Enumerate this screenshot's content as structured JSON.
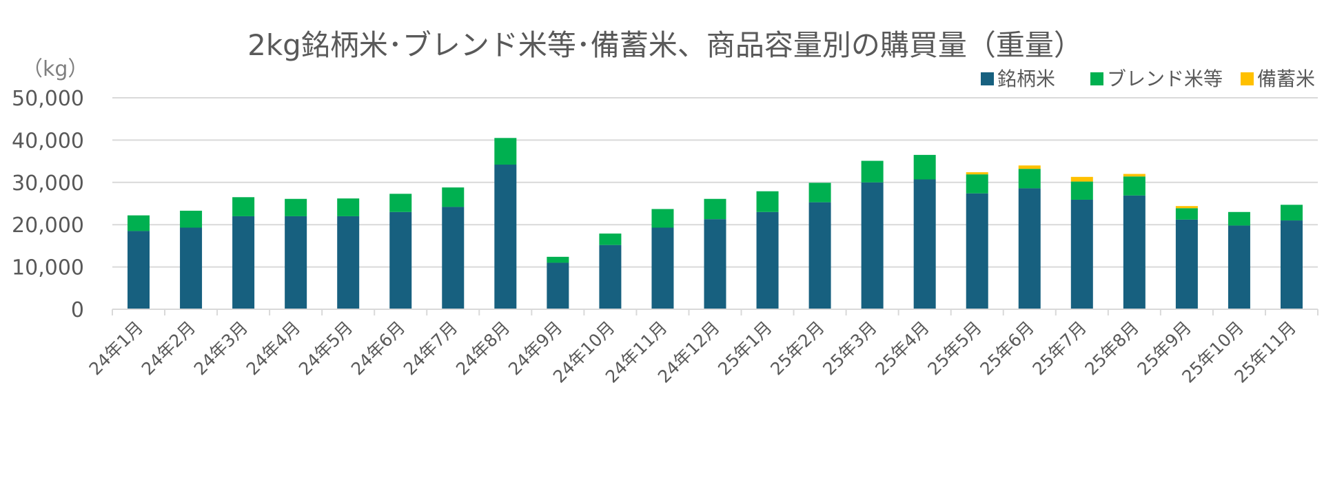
{
  "chart_data": {
    "type": "bar",
    "stacked": true,
    "title": "2kg銘柄米･ブレンド米等･備蓄米、商品容量別の購買量（重量）",
    "unit_label": "（kg）",
    "categories": [
      "24年1月",
      "24年2月",
      "24年3月",
      "24年4月",
      "24年5月",
      "24年6月",
      "24年7月",
      "24年8月",
      "24年9月",
      "24年10月",
      "24年11月",
      "24年12月",
      "25年1月",
      "25年2月",
      "25年3月",
      "25年4月",
      "25年5月",
      "25年6月",
      "25年7月",
      "25年8月",
      "25年9月",
      "25年10月",
      "25年11月"
    ],
    "series": [
      {
        "name": "銘柄米",
        "color": "#17607f",
        "values": [
          18500,
          19300,
          22000,
          22000,
          22000,
          23000,
          24200,
          34200,
          11000,
          15200,
          19300,
          21300,
          23000,
          25300,
          30000,
          30700,
          27400,
          28600,
          25900,
          26900,
          21200,
          19800,
          21000
        ]
      },
      {
        "name": "ブレンド米等",
        "color": "#00b050",
        "values": [
          3700,
          4000,
          4500,
          4100,
          4200,
          4300,
          4600,
          6300,
          1400,
          2700,
          4400,
          4800,
          4900,
          4600,
          5100,
          5800,
          4500,
          4600,
          4300,
          4500,
          2700,
          3200,
          3700
        ]
      },
      {
        "name": "備蓄米",
        "color": "#ffc000",
        "values": [
          0,
          0,
          0,
          0,
          0,
          0,
          0,
          0,
          0,
          0,
          0,
          0,
          0,
          0,
          0,
          0,
          500,
          800,
          1100,
          600,
          500,
          0,
          0
        ]
      }
    ],
    "ylim": [
      0,
      50000
    ],
    "yticks": [
      "0",
      "10,000",
      "20,000",
      "30,000",
      "40,000",
      "50,000"
    ],
    "grid": true,
    "legend_position": "top-right"
  }
}
